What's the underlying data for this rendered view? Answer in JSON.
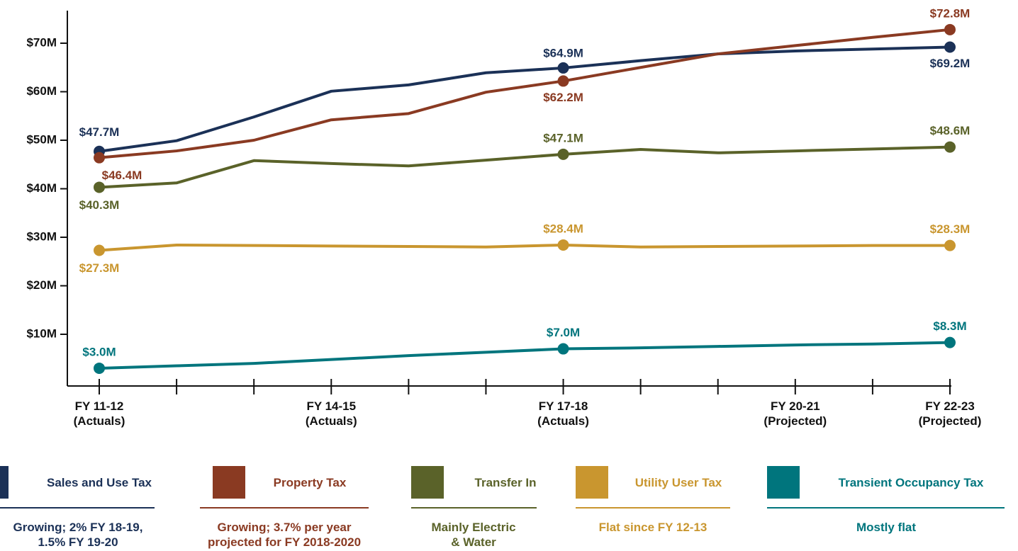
{
  "chart_data": {
    "type": "line",
    "categories": [
      "FY 11-12\n(Actuals)",
      null,
      null,
      "FY 14-15\n(Actuals)",
      null,
      null,
      "FY 17-18\n(Actuals)",
      null,
      null,
      "FY 20-21\n(Projected)",
      null,
      "FY 22-23\n(Projected)"
    ],
    "ylim": [
      0,
      77
    ],
    "yticks": [
      {
        "value": 10,
        "label": "$10M"
      },
      {
        "value": 20,
        "label": "$20M"
      },
      {
        "value": 30,
        "label": "$30M"
      },
      {
        "value": 40,
        "label": "$40M"
      },
      {
        "value": 50,
        "label": "$50M"
      },
      {
        "value": 60,
        "label": "$60M"
      },
      {
        "value": 70,
        "label": "$70M"
      }
    ],
    "series": [
      {
        "name": "Sales and Use Tax",
        "color": "#1b3157",
        "note": "Growing; 2% FY 18-19,\n1.5% FY 19-20",
        "values": [
          47.7,
          49.9,
          54.8,
          60.1,
          61.4,
          63.9,
          64.9,
          66.4,
          67.8,
          68.4,
          68.8,
          69.2
        ],
        "value_labels": [
          "$47.7M",
          null,
          null,
          null,
          null,
          null,
          "$64.9M",
          null,
          null,
          null,
          null,
          "$69.2M"
        ]
      },
      {
        "name": "Property Tax",
        "color": "#8a3a22",
        "note": "Growing; 3.7% per year\nprojected for FY 2018-2020",
        "values": [
          46.4,
          47.8,
          50.0,
          54.2,
          55.5,
          59.9,
          62.2,
          65.0,
          67.8,
          69.5,
          71.2,
          72.8
        ],
        "value_labels": [
          "$46.4M",
          null,
          null,
          null,
          null,
          null,
          "$62.2M",
          null,
          null,
          null,
          null,
          "$72.8M"
        ]
      },
      {
        "name": "Transfer In",
        "color": "#5a6229",
        "note": "Mainly Electric\n& Water",
        "values": [
          40.3,
          41.2,
          45.8,
          45.2,
          44.7,
          45.9,
          47.1,
          48.1,
          47.4,
          47.8,
          48.2,
          48.6
        ],
        "value_labels": [
          "$40.3M",
          null,
          null,
          null,
          null,
          null,
          "$47.1M",
          null,
          null,
          null,
          null,
          "$48.6M"
        ]
      },
      {
        "name": "Utility User Tax",
        "color": "#c9962f",
        "note": "Flat since FY 12-13",
        "values": [
          27.3,
          28.4,
          28.3,
          28.2,
          28.1,
          28.0,
          28.4,
          28.0,
          28.1,
          28.2,
          28.3,
          28.3
        ],
        "value_labels": [
          "$27.3M",
          null,
          null,
          null,
          null,
          null,
          "$28.4M",
          null,
          null,
          null,
          null,
          "$28.3M"
        ]
      },
      {
        "name": "Transient Occupancy Tax",
        "color": "#00757d",
        "note": "Mostly flat",
        "values": [
          3.0,
          3.5,
          4.0,
          4.8,
          5.6,
          6.3,
          7.0,
          7.2,
          7.5,
          7.8,
          8.0,
          8.3
        ],
        "value_labels": [
          "$3.0M",
          null,
          null,
          null,
          null,
          null,
          "$7.0M",
          null,
          null,
          null,
          null,
          "$8.3M"
        ]
      }
    ]
  }
}
